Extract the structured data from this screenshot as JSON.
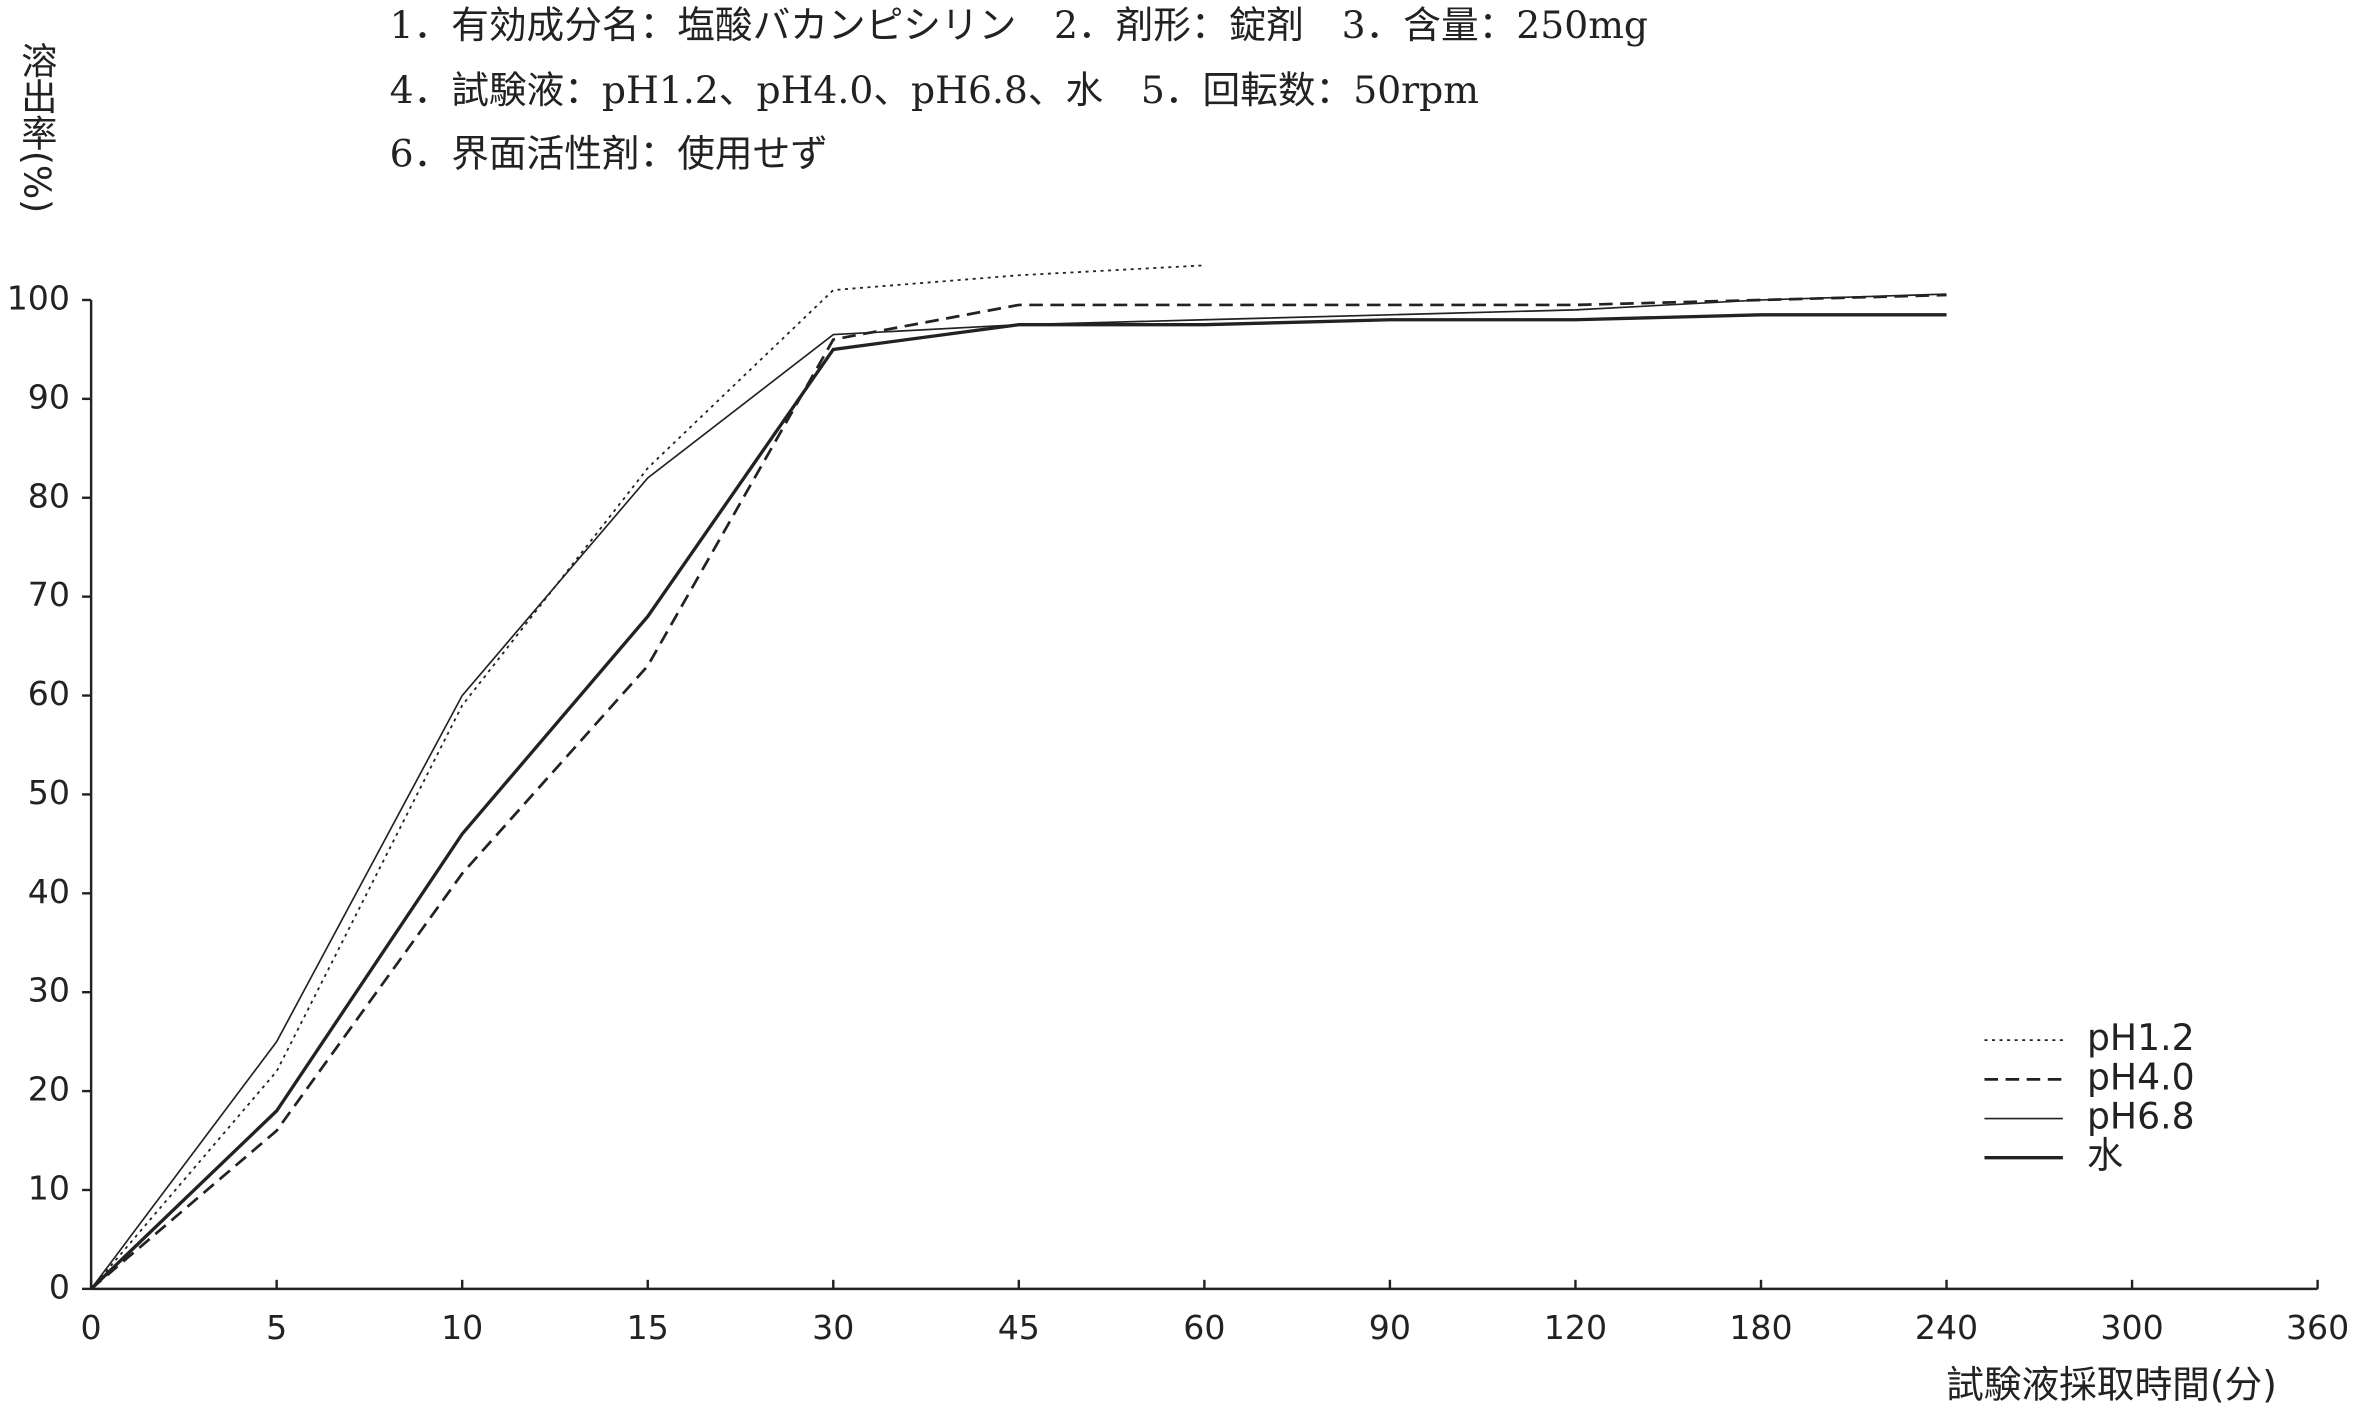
{
  "chart_data": {
    "type": "line",
    "annotations": [
      "1．有効成分名：塩酸バカンピシリン　2．剤形：錠剤　3．含量：250mg",
      "4．試験液：pH1.2、pH4.0、pH6.8、水　5．回転数：50rpm",
      "6．界面活性剤：使用せず"
    ],
    "y_label": "溶出率(%)",
    "x_label": "試験液採取時間(分)",
    "categories": [
      "0",
      "5",
      "10",
      "15",
      "30",
      "45",
      "60",
      "90",
      "120",
      "180",
      "240",
      "300",
      "360"
    ],
    "ylim": [
      0,
      100
    ],
    "yticks": [
      0,
      10,
      20,
      30,
      40,
      50,
      60,
      70,
      80,
      90,
      100
    ],
    "legend": "lower right",
    "series": [
      {
        "name": "pH1.2",
        "color": "#222222",
        "dash": "dotted",
        "width": 1.2,
        "values": [
          0,
          22,
          59,
          83,
          101,
          102.5,
          103.5,
          null,
          null,
          null,
          null,
          null,
          null
        ]
      },
      {
        "name": "pH4.0",
        "color": "#222222",
        "dash": "dashed",
        "width": 1.8,
        "values": [
          0,
          16,
          42,
          63,
          96,
          99.5,
          99.5,
          99.5,
          99.5,
          100,
          100.5,
          null,
          null
        ]
      },
      {
        "name": "pH6.8",
        "color": "#222222",
        "dash": "solid",
        "width": 1.1,
        "values": [
          0,
          25,
          60,
          82,
          96.5,
          97.5,
          98,
          98.5,
          99,
          100,
          100.6,
          null,
          null
        ]
      },
      {
        "name": "水",
        "color": "#222222",
        "dash": "solid",
        "width": 2.2,
        "values": [
          0,
          18,
          46,
          68,
          95,
          97.5,
          97.5,
          98,
          98,
          98.5,
          98.5,
          null,
          null
        ]
      }
    ]
  }
}
